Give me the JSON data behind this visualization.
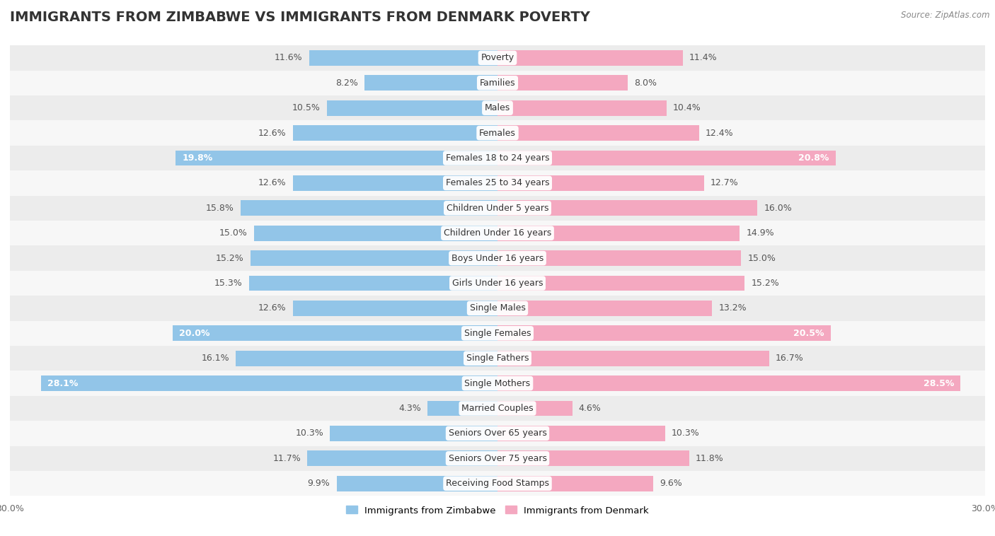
{
  "title": "IMMIGRANTS FROM ZIMBABWE VS IMMIGRANTS FROM DENMARK POVERTY",
  "source": "Source: ZipAtlas.com",
  "categories": [
    "Poverty",
    "Families",
    "Males",
    "Females",
    "Females 18 to 24 years",
    "Females 25 to 34 years",
    "Children Under 5 years",
    "Children Under 16 years",
    "Boys Under 16 years",
    "Girls Under 16 years",
    "Single Males",
    "Single Females",
    "Single Fathers",
    "Single Mothers",
    "Married Couples",
    "Seniors Over 65 years",
    "Seniors Over 75 years",
    "Receiving Food Stamps"
  ],
  "zimbabwe_values": [
    11.6,
    8.2,
    10.5,
    12.6,
    19.8,
    12.6,
    15.8,
    15.0,
    15.2,
    15.3,
    12.6,
    20.0,
    16.1,
    28.1,
    4.3,
    10.3,
    11.7,
    9.9
  ],
  "denmark_values": [
    11.4,
    8.0,
    10.4,
    12.4,
    20.8,
    12.7,
    16.0,
    14.9,
    15.0,
    15.2,
    13.2,
    20.5,
    16.7,
    28.5,
    4.6,
    10.3,
    11.8,
    9.6
  ],
  "zimbabwe_color": "#92c5e8",
  "denmark_color": "#f4a8c0",
  "row_color_odd": "#ececec",
  "row_color_even": "#f7f7f7",
  "max_value": 30.0,
  "legend_zimbabwe": "Immigrants from Zimbabwe",
  "legend_denmark": "Immigrants from Denmark",
  "title_fontsize": 14,
  "label_fontsize": 9,
  "value_fontsize": 9,
  "threshold_inside": 18.0
}
